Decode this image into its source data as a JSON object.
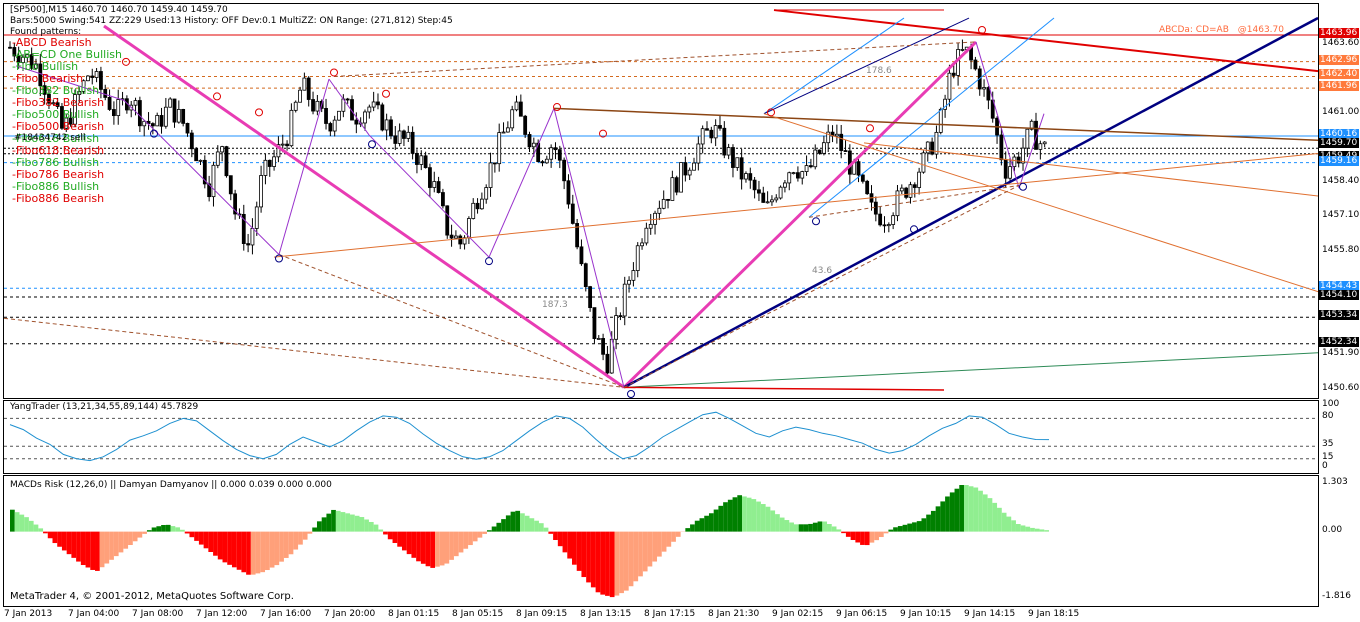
{
  "header": {
    "title_line": "[SP500],M15  1460.70 1460.70 1459.40 1459.70",
    "status_line": "Bars:5000  Swing:541  ZZ:229  Used:13  History: OFF Dev:0.1  MultiZZ: ON  Range: (271,812)  Step:45",
    "found_patterns": "Found patterns:",
    "trade_label": "#18434742 sell"
  },
  "patterns": [
    {
      "label": "-ABCD Bearish",
      "color": "#e00000"
    },
    {
      "label": "-AB=CD One Bullish",
      "color": "#22aa22"
    },
    {
      "label": "-Fibo Bullish",
      "color": "#22aa22"
    },
    {
      "label": "-Fibo Bearish",
      "color": "#e00000"
    },
    {
      "label": "-Fibo382 Bullish",
      "color": "#22aa22"
    },
    {
      "label": "-Fibo382 Bearish",
      "color": "#e00000"
    },
    {
      "label": "-Fibo500 Bullish",
      "color": "#22aa22"
    },
    {
      "label": "-Fibo500 Bearish",
      "color": "#e00000"
    },
    {
      "label": "-Fibo618 Bullish",
      "color": "#22aa22"
    },
    {
      "label": "-Fibo618 Bearish",
      "color": "#e00000"
    },
    {
      "label": "-Fibo786 Bullish",
      "color": "#22aa22"
    },
    {
      "label": "-Fibo786 Bearish",
      "color": "#e00000"
    },
    {
      "label": "-Fibo886 Bullish",
      "color": "#22aa22"
    },
    {
      "label": "-Fibo886 Bearish",
      "color": "#e00000"
    }
  ],
  "annotations": {
    "abcd_label": "ABCDa: CD=AB",
    "abcd_value": "@1463.70",
    "fib_178": "178.6",
    "fib_43": "43.6",
    "fib_187": "187.3"
  },
  "price_tags": [
    {
      "value": "1463.96",
      "bg": "#e00000",
      "fg": "#ffffff"
    },
    {
      "value": "1462.96",
      "bg": "#ff7a3c",
      "fg": "#ffffff"
    },
    {
      "value": "1462.40",
      "bg": "#ff7a3c",
      "fg": "#ffffff"
    },
    {
      "value": "1461.96",
      "bg": "#ff7a3c",
      "fg": "#ffffff"
    },
    {
      "value": "1460.16",
      "bg": "#1e90ff",
      "fg": "#ffffff"
    },
    {
      "value": "1459.70",
      "bg": "#000000",
      "fg": "#ffffff"
    },
    {
      "value": "1459.49",
      "bg": "#000000",
      "fg": "#ffffff"
    },
    {
      "value": "1459.16",
      "bg": "#1e90ff",
      "fg": "#ffffff"
    },
    {
      "value": "1454.43",
      "bg": "#1e90ff",
      "fg": "#ffffff"
    },
    {
      "value": "1454.10",
      "bg": "#000000",
      "fg": "#ffffff"
    },
    {
      "value": "1453.34",
      "bg": "#000000",
      "fg": "#ffffff"
    },
    {
      "value": "1452.34",
      "bg": "#000000",
      "fg": "#ffffff"
    }
  ],
  "chart_data": [
    {
      "type": "candlestick",
      "title": "[SP500],M15",
      "ylim": [
        1450.6,
        1464.3
      ],
      "y_ticks": [
        "1463.60",
        "1461.00",
        "1458.40",
        "1457.10",
        "1455.80",
        "1451.90",
        "1450.60"
      ],
      "x_tick_labels": [
        "7 Jan 2013",
        "7 Jan 04:00",
        "7 Jan 08:00",
        "7 Jan 12:00",
        "7 Jan 16:00",
        "7 Jan 20:00",
        "8 Jan 01:15",
        "8 Jan 05:15",
        "8 Jan 09:15",
        "8 Jan 13:15",
        "8 Jan 17:15",
        "8 Jan 21:30",
        "9 Jan 02:15",
        "9 Jan 06:15",
        "9 Jan 10:15",
        "9 Jan 14:15",
        "9 Jan 18:15"
      ],
      "close_path": [
        1463.5,
        1463.2,
        1462.8,
        1461.6,
        1460.3,
        1461.5,
        1462.6,
        1461.8,
        1461.0,
        1461.7,
        1460.8,
        1460.5,
        1461.3,
        1460.7,
        1459.6,
        1458.3,
        1459.9,
        1457.2,
        1456.0,
        1458.6,
        1459.4,
        1460.3,
        1462.1,
        1461.2,
        1460.6,
        1461.4,
        1460.9,
        1461.3,
        1460.8,
        1460.2,
        1459.9,
        1459.2,
        1458.2,
        1456.6,
        1456.1,
        1457.6,
        1458.7,
        1460.0,
        1461.2,
        1460.3,
        1459.4,
        1459.9,
        1458.1,
        1455.3,
        1452.8,
        1451.6,
        1453.6,
        1455.4,
        1457.1,
        1457.7,
        1458.3,
        1459.0,
        1459.9,
        1460.5,
        1459.6,
        1458.8,
        1458.2,
        1457.3,
        1458.4,
        1459.1,
        1458.7,
        1459.5,
        1460.3,
        1459.4,
        1458.4,
        1457.3,
        1457.1,
        1457.8,
        1458.5,
        1459.3,
        1460.4,
        1462.7,
        1463.4,
        1462.4,
        1461.0,
        1458.9,
        1459.4,
        1460.3,
        1459.7
      ],
      "series": [
        {
          "name": "support",
          "color": "#000080"
        },
        {
          "name": "resistance",
          "color": "#e00000"
        }
      ]
    },
    {
      "type": "line",
      "title": "YangTrader (13,21,34,55,89,144) 45.7829",
      "ylim": [
        0,
        100
      ],
      "y_ticks": [
        "100",
        "80",
        "35",
        "15",
        "0"
      ],
      "values": [
        70,
        62,
        48,
        38,
        22,
        15,
        12,
        18,
        30,
        45,
        52,
        60,
        72,
        80,
        76,
        60,
        44,
        30,
        20,
        15,
        22,
        38,
        50,
        42,
        34,
        44,
        60,
        74,
        84,
        82,
        72,
        55,
        40,
        28,
        18,
        14,
        18,
        28,
        44,
        60,
        74,
        84,
        80,
        66,
        46,
        28,
        15,
        20,
        34,
        50,
        62,
        74,
        86,
        90,
        80,
        68,
        56,
        50,
        60,
        66,
        62,
        56,
        52,
        46,
        40,
        30,
        24,
        28,
        38,
        52,
        64,
        72,
        84,
        82,
        70,
        56,
        50,
        46,
        45.8
      ]
    },
    {
      "type": "bar",
      "title": "MACDs Risk (12,26,0) || Damyan Damyanov ||  0.000 0.039 0.000 0.000",
      "ylim": [
        -1.816,
        1.303
      ],
      "y_ticks": [
        "1.303",
        "0.00",
        "-1.816"
      ],
      "values": [
        0.6,
        0.4,
        0.1,
        -0.3,
        -0.6,
        -0.9,
        -1.1,
        -0.8,
        -0.5,
        -0.2,
        0.1,
        0.2,
        0.1,
        -0.2,
        -0.5,
        -0.8,
        -1.0,
        -1.2,
        -1.1,
        -0.9,
        -0.6,
        -0.2,
        0.3,
        0.6,
        0.5,
        0.4,
        0.2,
        -0.2,
        -0.5,
        -0.8,
        -1.0,
        -0.9,
        -0.6,
        -0.3,
        0.0,
        0.3,
        0.6,
        0.4,
        0.2,
        -0.3,
        -0.8,
        -1.3,
        -1.7,
        -1.8,
        -1.6,
        -1.2,
        -0.8,
        -0.4,
        0.0,
        0.3,
        0.5,
        0.8,
        1.0,
        0.9,
        0.7,
        0.4,
        0.2,
        0.2,
        0.3,
        0.1,
        -0.2,
        -0.4,
        -0.2,
        0.1,
        0.2,
        0.3,
        0.6,
        1.0,
        1.3,
        1.2,
        0.9,
        0.5,
        0.2,
        0.1,
        0.04
      ]
    }
  ],
  "footer": {
    "copyright": "MetaTrader 4, © 2001-2012, MetaQuotes Software Corp."
  }
}
